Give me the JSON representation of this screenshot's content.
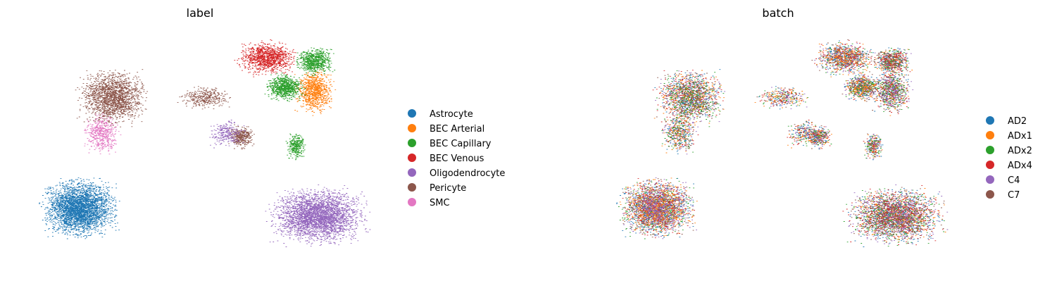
{
  "chart_data": [
    {
      "type": "scatter",
      "title": "label",
      "xlabel": "",
      "ylabel": "",
      "grid": false,
      "legend_placement": "right",
      "series": [
        {
          "name": "Astrocyte",
          "color": "#1f77b4"
        },
        {
          "name": "BEC Arterial",
          "color": "#ff7f0e"
        },
        {
          "name": "BEC Capillary",
          "color": "#2ca02c"
        },
        {
          "name": "BEC Venous",
          "color": "#d62728"
        },
        {
          "name": "Oligodendrocyte",
          "color": "#9467bd"
        },
        {
          "name": "Pericyte",
          "color": "#8c564b"
        },
        {
          "name": "SMC",
          "color": "#e377c2"
        }
      ],
      "clusters": [
        {
          "label": "Astrocyte",
          "x": [
            -7.5,
            -1.5
          ],
          "y": [
            -4.0,
            1.2
          ],
          "n": 3200
        },
        {
          "label": "Oligodendrocyte",
          "x": [
            8.0,
            15.5
          ],
          "y": [
            -4.5,
            0.5
          ],
          "n": 3200
        },
        {
          "label": "Pericyte",
          "x": [
            -5.0,
            0.5
          ],
          "y": [
            4.5,
            9.5
          ],
          "n": 1800
        },
        {
          "label": "Pericyte",
          "x": [
            2.0,
            6.0
          ],
          "y": [
            6.0,
            8.0
          ],
          "n": 350
        },
        {
          "label": "Pericyte",
          "x": [
            5.5,
            7.5
          ],
          "y": [
            3.0,
            5.0
          ],
          "n": 350
        },
        {
          "label": "SMC",
          "x": [
            -4.5,
            -1.5
          ],
          "y": [
            2.5,
            6.0
          ],
          "n": 500
        },
        {
          "label": "BEC Venous",
          "x": [
            6.0,
            10.5
          ],
          "y": [
            8.5,
            11.5
          ],
          "n": 1100
        },
        {
          "label": "BEC Arterial",
          "x": [
            10.0,
            13.0
          ],
          "y": [
            5.5,
            9.5
          ],
          "n": 900
        },
        {
          "label": "BEC Capillary",
          "x": [
            10.0,
            13.0
          ],
          "y": [
            8.5,
            11.0
          ],
          "n": 700
        },
        {
          "label": "BEC Capillary",
          "x": [
            8.0,
            11.0
          ],
          "y": [
            6.5,
            9.0
          ],
          "n": 800
        },
        {
          "label": "BEC Capillary",
          "x": [
            9.5,
            11.0
          ],
          "y": [
            2.0,
            4.5
          ],
          "n": 300
        },
        {
          "label": "Oligodendrocyte",
          "x": [
            4.0,
            7.0
          ],
          "y": [
            3.0,
            5.5
          ],
          "n": 250
        }
      ]
    },
    {
      "type": "scatter",
      "title": "batch",
      "xlabel": "",
      "ylabel": "",
      "grid": false,
      "legend_placement": "right",
      "series": [
        {
          "name": "AD2",
          "color": "#1f77b4"
        },
        {
          "name": "ADx1",
          "color": "#ff7f0e"
        },
        {
          "name": "ADx2",
          "color": "#2ca02c"
        },
        {
          "name": "ADx4",
          "color": "#d62728"
        },
        {
          "name": "C4",
          "color": "#9467bd"
        },
        {
          "name": "C7",
          "color": "#8c564b"
        }
      ]
    }
  ]
}
